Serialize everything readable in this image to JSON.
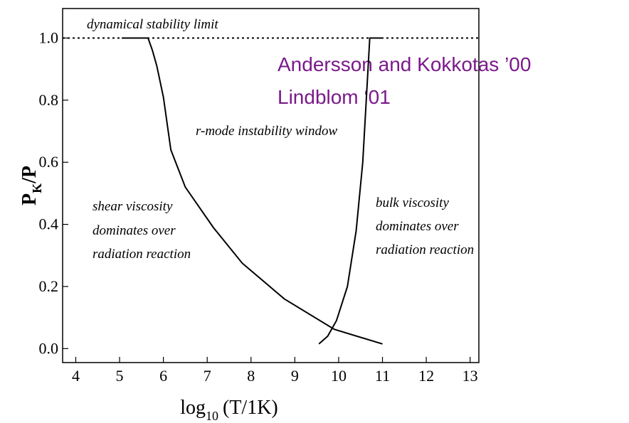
{
  "chart_data": {
    "type": "line",
    "x_label": [
      "log",
      "10",
      "(T/1K)"
    ],
    "y_label": [
      "P",
      "K",
      "/P"
    ],
    "xlim": [
      3.7,
      13.2
    ],
    "ylim": [
      -0.045,
      1.095
    ],
    "xticks": [
      4,
      5,
      6,
      7,
      8,
      9,
      10,
      11,
      12,
      13
    ],
    "yticks": [
      {
        "value": 0,
        "label": "0.0"
      },
      {
        "value": 0.2,
        "label": "0.2"
      },
      {
        "value": 0.4,
        "label": "0.4"
      },
      {
        "value": 0.6,
        "label": "0.6"
      },
      {
        "value": 0.8,
        "label": "0.8"
      },
      {
        "value": 1,
        "label": "1.0"
      }
    ],
    "limit": {
      "value": 1.0,
      "label": "dynamical stability limit"
    },
    "series": [
      {
        "color": "#000000",
        "x": [
          5.05,
          5.65,
          5.75,
          5.85,
          6.0,
          6.17,
          6.5,
          7.14,
          7.8,
          8.76,
          9.9,
          11.0
        ],
        "values": [
          1.0,
          1.0,
          0.96,
          0.91,
          0.81,
          0.64,
          0.52,
          0.39,
          0.275,
          0.16,
          0.062,
          0.015
        ]
      },
      {
        "color": "#000000",
        "x": [
          9.55,
          9.75,
          9.95,
          10.2,
          10.4,
          10.55,
          10.65,
          10.71,
          11.0
        ],
        "values": [
          0.015,
          0.04,
          0.09,
          0.2,
          0.38,
          0.6,
          0.85,
          1.0,
          1.0
        ]
      }
    ],
    "annotations": [
      "r-mode instability window",
      "shear viscosity",
      "dominates over",
      "radiation reaction",
      "bulk viscosity",
      "dominates over",
      "radiation reaction"
    ],
    "credits": [
      "Andersson and Kokkotas ’00",
      "Lindblom ‘01"
    ]
  }
}
